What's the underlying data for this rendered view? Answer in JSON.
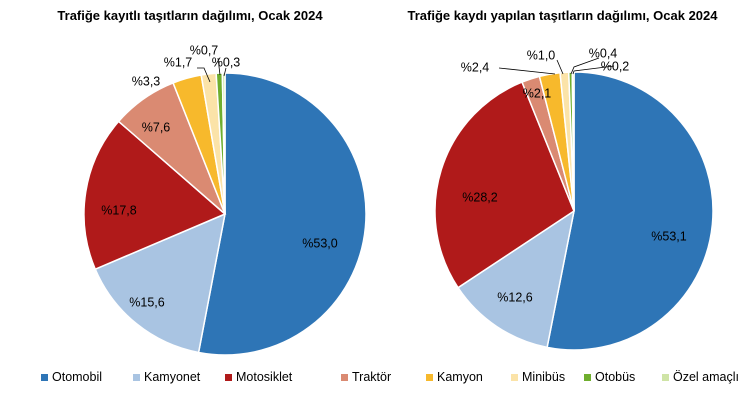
{
  "chart_data": [
    {
      "type": "pie",
      "title": "Trafiğe kayıtlı taşıtların dağılımı, Ocak 2024",
      "categories": [
        "Otomobil",
        "Kamyonet",
        "Motosiklet",
        "Traktör",
        "Kamyon",
        "Minibüs",
        "Otobüs",
        "Özel amaçlı"
      ],
      "values": [
        53.0,
        15.6,
        17.8,
        7.6,
        3.3,
        1.7,
        0.7,
        0.3
      ],
      "labels": [
        "%53,0",
        "%15,6",
        "%17,8",
        "%7,6",
        "%3,3",
        "%1,7",
        "%0,7",
        "%0,3"
      ]
    },
    {
      "type": "pie",
      "title": "Trafiğe kaydı yapılan taşıtların dağılımı, Ocak 2024",
      "categories": [
        "Otomobil",
        "Kamyonet",
        "Motosiklet",
        "Traktör",
        "Kamyon",
        "Minibüs",
        "Otobüs",
        "Özel amaçlı"
      ],
      "values": [
        53.1,
        12.6,
        28.2,
        2.1,
        2.4,
        1.0,
        0.4,
        0.2
      ],
      "labels": [
        "%53,1",
        "%12,6",
        "%28,2",
        "%2,1",
        "%2,4",
        "%1,0",
        "%0,4",
        "%0,2"
      ]
    }
  ],
  "legend": [
    {
      "label": "Otomobil",
      "color": "#2E75B6"
    },
    {
      "label": "Kamyonet",
      "color": "#A9C4E2"
    },
    {
      "label": "Motosiklet",
      "color": "#B01A1A"
    },
    {
      "label": "Traktör",
      "color": "#DA8A72"
    },
    {
      "label": "Kamyon",
      "color": "#F7B92C"
    },
    {
      "label": "Minibüs",
      "color": "#FBE3A8"
    },
    {
      "label": "Otobüs",
      "color": "#6FAE2E"
    },
    {
      "label": "Özel amaçlı",
      "color": "#CFE4A6"
    }
  ]
}
